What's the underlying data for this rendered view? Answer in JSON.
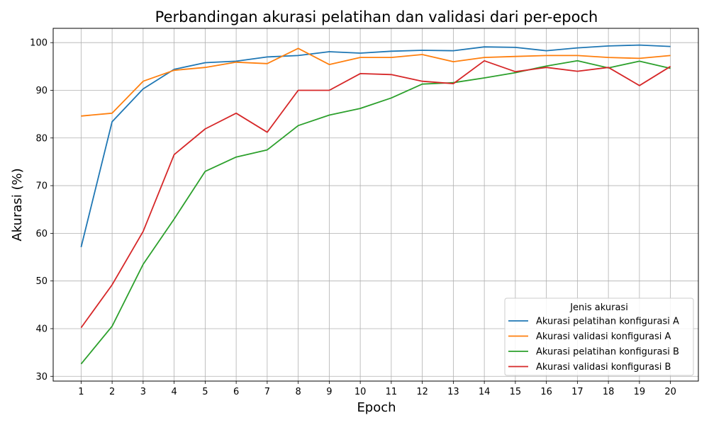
{
  "chart_data": {
    "type": "line",
    "title": "Perbandingan akurasi pelatihan dan validasi dari per-epoch",
    "xlabel": "Epoch",
    "ylabel": "Akurasi (%)",
    "x": [
      1,
      2,
      3,
      4,
      5,
      6,
      7,
      8,
      9,
      10,
      11,
      12,
      13,
      14,
      15,
      16,
      17,
      18,
      19,
      20
    ],
    "xlim": [
      0.1,
      20.9
    ],
    "ylim": [
      29,
      103
    ],
    "yticks": [
      30,
      40,
      50,
      60,
      70,
      80,
      90,
      100
    ],
    "grid": true,
    "legend": {
      "title": "Jenis akurasi",
      "position": "lower-right"
    },
    "series": [
      {
        "name": "Akurasi pelatihan konfigurasi A",
        "color": "#1f77b4",
        "values": [
          57.1,
          83.4,
          90.3,
          94.4,
          95.8,
          96.1,
          97.0,
          97.3,
          98.1,
          97.8,
          98.2,
          98.4,
          98.3,
          99.1,
          99.0,
          98.3,
          98.9,
          99.3,
          99.5,
          99.2
        ]
      },
      {
        "name": "Akurasi validasi konfigurasi A",
        "color": "#ff7f0e",
        "values": [
          84.6,
          85.2,
          91.9,
          94.2,
          94.8,
          95.9,
          95.6,
          98.8,
          95.4,
          96.9,
          96.9,
          97.5,
          96.0,
          96.9,
          97.1,
          97.3,
          97.3,
          96.9,
          96.7,
          97.3
        ]
      },
      {
        "name": "Akurasi pelatihan konfigurasi B",
        "color": "#2ca02c",
        "values": [
          32.6,
          40.5,
          53.5,
          63.0,
          73.0,
          76.0,
          77.5,
          82.6,
          84.8,
          86.2,
          88.4,
          91.3,
          91.6,
          92.6,
          93.7,
          95.1,
          96.2,
          94.7,
          96.1,
          94.6
        ]
      },
      {
        "name": "Akurasi validasi konfigurasi B",
        "color": "#d62728",
        "values": [
          40.2,
          49.2,
          60.4,
          76.5,
          81.9,
          85.2,
          81.2,
          90.0,
          90.0,
          93.5,
          93.3,
          91.9,
          91.4,
          96.2,
          93.9,
          94.8,
          94.0,
          94.8,
          91.0,
          95.0
        ]
      }
    ]
  }
}
